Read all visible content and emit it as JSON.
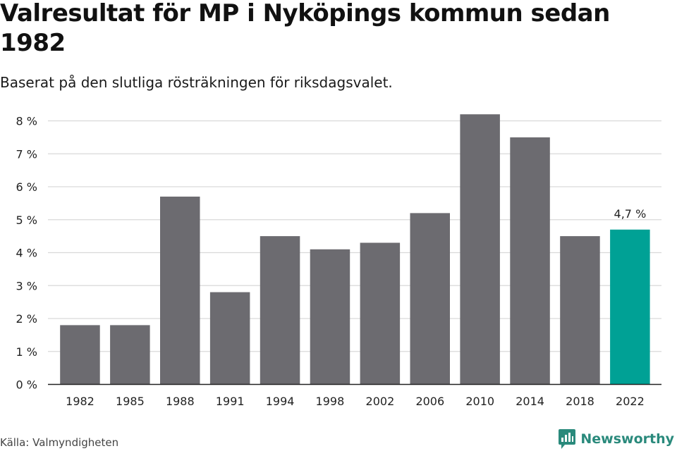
{
  "header": {
    "title": "Valresultat för MP i Nyköpings kommun sedan 1982",
    "subtitle": "Baserat på den slutliga rösträkningen för riksdagsvalet."
  },
  "footer": {
    "source": "Källa: Valmyndigheten",
    "brand": "Newsworthy"
  },
  "colors": {
    "bar": "#6c6b70",
    "highlight": "#00a195",
    "grid": "#d9d9d9",
    "axis": "#222222",
    "text": "#222222",
    "brand": "#2a8a7c"
  },
  "icons": {
    "brand_logo": "newsworthy-logo-icon"
  },
  "chart_data": {
    "type": "bar",
    "categories": [
      "1982",
      "1985",
      "1988",
      "1991",
      "1994",
      "1998",
      "2002",
      "2006",
      "2010",
      "2014",
      "2018",
      "2022"
    ],
    "values": [
      1.8,
      1.8,
      5.7,
      2.8,
      4.5,
      4.1,
      4.3,
      5.2,
      8.2,
      7.5,
      4.5,
      4.7
    ],
    "y_ticks": [
      0,
      1,
      2,
      3,
      4,
      5,
      6,
      7,
      8
    ],
    "y_tick_labels": [
      "0 %",
      "1 %",
      "2 %",
      "3 %",
      "4 %",
      "5 %",
      "6 %",
      "7 %",
      "8 %"
    ],
    "ylim": [
      0,
      8.2
    ],
    "y_unit": "%",
    "grid": true,
    "highlight_category": "2022",
    "data_labels": [
      {
        "category": "2022",
        "text": "4,7 %"
      }
    ],
    "xlabel": "",
    "ylabel": ""
  }
}
